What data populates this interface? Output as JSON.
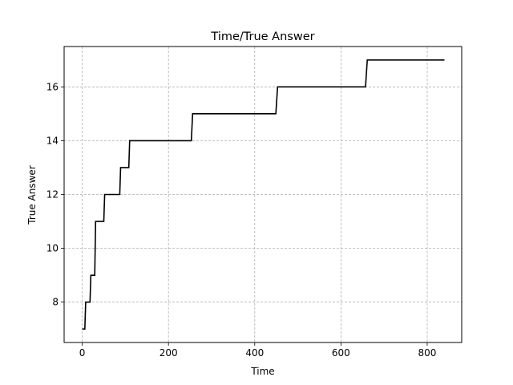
{
  "chart_data": {
    "type": "line",
    "title": "Time/True Answer",
    "xlabel": "Time",
    "ylabel": "True Answer",
    "xlim": [
      -42,
      880
    ],
    "ylim": [
      6.5,
      17.5
    ],
    "xticks": [
      0,
      200,
      400,
      600,
      800
    ],
    "yticks": [
      8,
      10,
      12,
      14,
      16
    ],
    "grid": true,
    "line_color": "#000000",
    "series": [
      {
        "x": [
          0,
          6,
          8,
          18,
          20,
          29,
          31,
          50,
          52,
          87,
          89,
          108,
          110,
          253,
          256,
          449,
          453,
          657,
          661,
          840
        ],
        "y": [
          7,
          7,
          8,
          8,
          9,
          9,
          11,
          11,
          12,
          12,
          13,
          13,
          14,
          14,
          15,
          15,
          16,
          16,
          17,
          17
        ]
      }
    ]
  }
}
